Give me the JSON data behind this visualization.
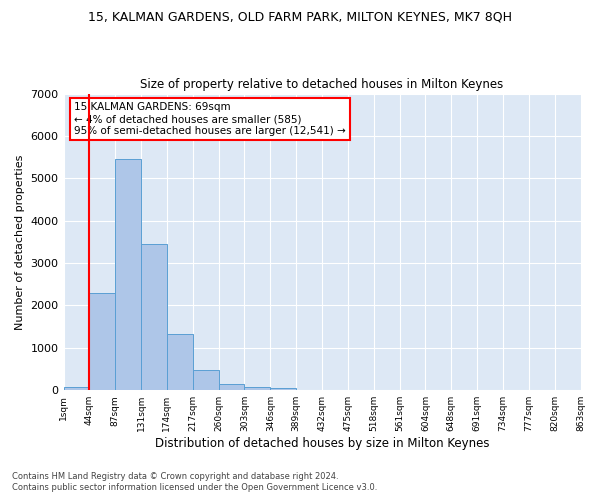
{
  "title": "15, KALMAN GARDENS, OLD FARM PARK, MILTON KEYNES, MK7 8QH",
  "subtitle": "Size of property relative to detached houses in Milton Keynes",
  "xlabel": "Distribution of detached houses by size in Milton Keynes",
  "ylabel": "Number of detached properties",
  "bar_values": [
    80,
    2300,
    5450,
    3450,
    1320,
    470,
    155,
    85,
    55,
    0,
    0,
    0,
    0,
    0,
    0,
    0,
    0,
    0,
    0,
    0
  ],
  "bin_labels": [
    "1sqm",
    "44sqm",
    "87sqm",
    "131sqm",
    "174sqm",
    "217sqm",
    "260sqm",
    "303sqm",
    "346sqm",
    "389sqm",
    "432sqm",
    "475sqm",
    "518sqm",
    "561sqm",
    "604sqm",
    "648sqm",
    "691sqm",
    "734sqm",
    "777sqm",
    "820sqm",
    "863sqm"
  ],
  "bar_color": "#aec6e8",
  "bar_edge_color": "#5a9fd4",
  "ylim": [
    0,
    7000
  ],
  "yticks": [
    0,
    1000,
    2000,
    3000,
    4000,
    5000,
    6000,
    7000
  ],
  "red_line_x": 1,
  "annotation_title": "15 KALMAN GARDENS: 69sqm",
  "annotation_line1": "← 4% of detached houses are smaller (585)",
  "annotation_line2": "95% of semi-detached houses are larger (12,541) →",
  "footer_line1": "Contains HM Land Registry data © Crown copyright and database right 2024.",
  "footer_line2": "Contains public sector information licensed under the Open Government Licence v3.0.",
  "background_color": "#dde8f5",
  "fig_background": "#ffffff"
}
